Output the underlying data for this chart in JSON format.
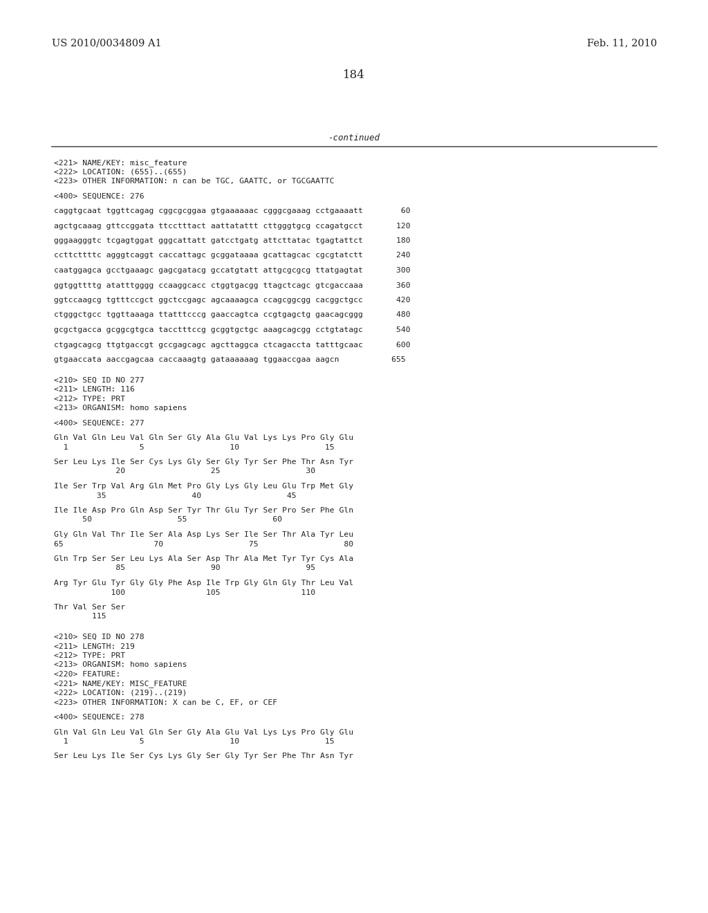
{
  "bg_color": "#ffffff",
  "header_left": "US 2010/0034809 A1",
  "header_right": "Feb. 11, 2010",
  "page_number": "184",
  "continued_text": "-continued",
  "body_lines": [
    {
      "text": "<221> NAME/KEY: misc_feature",
      "empty": false
    },
    {
      "text": "<222> LOCATION: (655)..(655)",
      "empty": false
    },
    {
      "text": "<223> OTHER INFORMATION: n can be TGC, GAATTC, or TGCGAATTC",
      "empty": false
    },
    {
      "text": "",
      "empty": true
    },
    {
      "text": "<400> SEQUENCE: 276",
      "empty": false
    },
    {
      "text": "",
      "empty": true
    },
    {
      "text": "caggtgcaat tggttcagag cggcgcggaa gtgaaaaaac cgggcgaaag cctgaaaatt        60",
      "empty": false
    },
    {
      "text": "",
      "empty": true
    },
    {
      "text": "agctgcaaag gttccggata ttcctttact aattatattt cttgggtgcg ccagatgcct       120",
      "empty": false
    },
    {
      "text": "",
      "empty": true
    },
    {
      "text": "gggaagggtc tcgagtggat gggcattatt gatcctgatg attcttatac tgagtattct       180",
      "empty": false
    },
    {
      "text": "",
      "empty": true
    },
    {
      "text": "ccttcttttc agggtcaggt caccattagc gcggataaaa gcattagcac cgcgtatctt       240",
      "empty": false
    },
    {
      "text": "",
      "empty": true
    },
    {
      "text": "caatggagca gcctgaaagc gagcgatacg gccatgtatt attgcgcgcg ttatgagtat       300",
      "empty": false
    },
    {
      "text": "",
      "empty": true
    },
    {
      "text": "ggtggttttg atatttgggg ccaaggcacc ctggtgacgg ttagctcagc gtcgaccaaa       360",
      "empty": false
    },
    {
      "text": "",
      "empty": true
    },
    {
      "text": "ggtccaagcg tgtttccgct ggctccgagc agcaaaagca ccagcggcgg cacggctgcc       420",
      "empty": false
    },
    {
      "text": "",
      "empty": true
    },
    {
      "text": "ctgggctgcc tggttaaaga ttatttcccg gaaccagtca ccgtgagctg gaacagcggg       480",
      "empty": false
    },
    {
      "text": "",
      "empty": true
    },
    {
      "text": "gcgctgacca gcggcgtgca tacctttccg gcggtgctgc aaagcagcgg cctgtatagc       540",
      "empty": false
    },
    {
      "text": "",
      "empty": true
    },
    {
      "text": "ctgagcagcg ttgtgaccgt gccgagcagc agcttaggca ctcagaccta tatttgcaac       600",
      "empty": false
    },
    {
      "text": "",
      "empty": true
    },
    {
      "text": "gtgaaccata aaccgagcaa caccaaagtg gataaaaaag tggaaccgaa aagcn           655",
      "empty": false
    },
    {
      "text": "",
      "empty": true
    },
    {
      "text": "",
      "empty": true
    },
    {
      "text": "<210> SEQ ID NO 277",
      "empty": false
    },
    {
      "text": "<211> LENGTH: 116",
      "empty": false
    },
    {
      "text": "<212> TYPE: PRT",
      "empty": false
    },
    {
      "text": "<213> ORGANISM: homo sapiens",
      "empty": false
    },
    {
      "text": "",
      "empty": true
    },
    {
      "text": "<400> SEQUENCE: 277",
      "empty": false
    },
    {
      "text": "",
      "empty": true
    },
    {
      "text": "Gln Val Gln Leu Val Gln Ser Gly Ala Glu Val Lys Lys Pro Gly Glu",
      "empty": false
    },
    {
      "text": "  1               5                  10                  15",
      "empty": false
    },
    {
      "text": "",
      "empty": true
    },
    {
      "text": "Ser Leu Lys Ile Ser Cys Lys Gly Ser Gly Tyr Ser Phe Thr Asn Tyr",
      "empty": false
    },
    {
      "text": "             20                  25                  30",
      "empty": false
    },
    {
      "text": "",
      "empty": true
    },
    {
      "text": "Ile Ser Trp Val Arg Gln Met Pro Gly Lys Gly Leu Glu Trp Met Gly",
      "empty": false
    },
    {
      "text": "         35                  40                  45",
      "empty": false
    },
    {
      "text": "",
      "empty": true
    },
    {
      "text": "Ile Ile Asp Pro Gln Asp Ser Tyr Thr Glu Tyr Ser Pro Ser Phe Gln",
      "empty": false
    },
    {
      "text": "      50                  55                  60",
      "empty": false
    },
    {
      "text": "",
      "empty": true
    },
    {
      "text": "Gly Gln Val Thr Ile Ser Ala Asp Lys Ser Ile Ser Thr Ala Tyr Leu",
      "empty": false
    },
    {
      "text": "65                   70                  75                  80",
      "empty": false
    },
    {
      "text": "",
      "empty": true
    },
    {
      "text": "Gln Trp Ser Ser Leu Lys Ala Ser Asp Thr Ala Met Tyr Tyr Cys Ala",
      "empty": false
    },
    {
      "text": "             85                  90                  95",
      "empty": false
    },
    {
      "text": "",
      "empty": true
    },
    {
      "text": "Arg Tyr Glu Tyr Gly Gly Phe Asp Ile Trp Gly Gln Gly Thr Leu Val",
      "empty": false
    },
    {
      "text": "            100                 105                 110",
      "empty": false
    },
    {
      "text": "",
      "empty": true
    },
    {
      "text": "Thr Val Ser Ser",
      "empty": false
    },
    {
      "text": "        115",
      "empty": false
    },
    {
      "text": "",
      "empty": true
    },
    {
      "text": "",
      "empty": true
    },
    {
      "text": "<210> SEQ ID NO 278",
      "empty": false
    },
    {
      "text": "<211> LENGTH: 219",
      "empty": false
    },
    {
      "text": "<212> TYPE: PRT",
      "empty": false
    },
    {
      "text": "<213> ORGANISM: homo sapiens",
      "empty": false
    },
    {
      "text": "<220> FEATURE:",
      "empty": false
    },
    {
      "text": "<221> NAME/KEY: MISC_FEATURE",
      "empty": false
    },
    {
      "text": "<222> LOCATION: (219)..(219)",
      "empty": false
    },
    {
      "text": "<223> OTHER INFORMATION: X can be C, EF, or CEF",
      "empty": false
    },
    {
      "text": "",
      "empty": true
    },
    {
      "text": "<400> SEQUENCE: 278",
      "empty": false
    },
    {
      "text": "",
      "empty": true
    },
    {
      "text": "Gln Val Gln Leu Val Gln Ser Gly Ala Glu Val Lys Lys Pro Gly Glu",
      "empty": false
    },
    {
      "text": "  1               5                  10                  15",
      "empty": false
    },
    {
      "text": "",
      "empty": true
    },
    {
      "text": "Ser Leu Lys Ile Ser Cys Lys Gly Ser Gly Tyr Ser Phe Thr Asn Tyr",
      "empty": false
    }
  ],
  "mono_size": 8.2,
  "text_color": "#222222",
  "rule_color": "#555555",
  "header_fontsize": 10.5,
  "page_num_fontsize": 12
}
